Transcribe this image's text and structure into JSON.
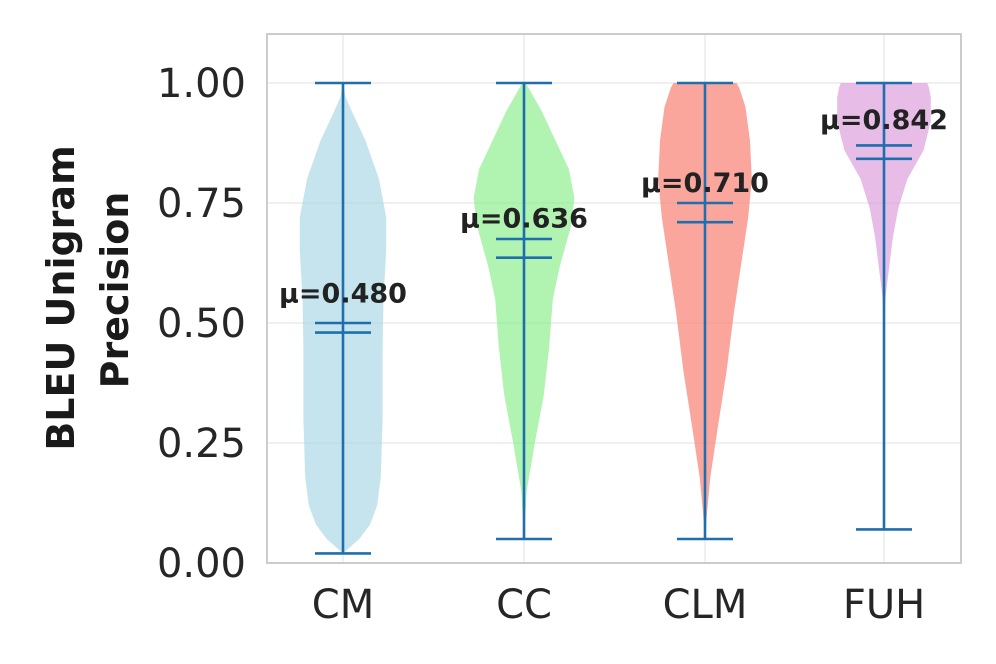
{
  "chart_data": {
    "type": "violin",
    "title": "",
    "xlabel": "",
    "ylabel": "BLEU Unigram Precision",
    "ylabel_lines": [
      "BLEU Unigram",
      "Precision"
    ],
    "ylim": [
      0,
      1.1
    ],
    "yticks": [
      0.0,
      0.25,
      0.5,
      0.75,
      1.0
    ],
    "ytick_labels": [
      "0.00",
      "0.25",
      "0.50",
      "0.75",
      "1.00"
    ],
    "grid": true,
    "line_color": "#1f6fae",
    "categories": [
      "CM",
      "CC",
      "CLM",
      "FUH"
    ],
    "series": [
      {
        "category": "CM",
        "color": "#add8e6",
        "min": 0.02,
        "max": 1.0,
        "mean": 0.48,
        "median": 0.5,
        "mean_label": "μ=0.480",
        "density": [
          [
            0.02,
            0.0
          ],
          [
            0.05,
            0.18
          ],
          [
            0.08,
            0.3
          ],
          [
            0.12,
            0.38
          ],
          [
            0.18,
            0.42
          ],
          [
            0.3,
            0.44
          ],
          [
            0.45,
            0.44
          ],
          [
            0.55,
            0.45
          ],
          [
            0.65,
            0.48
          ],
          [
            0.72,
            0.48
          ],
          [
            0.8,
            0.4
          ],
          [
            0.88,
            0.25
          ],
          [
            0.94,
            0.1
          ],
          [
            0.97,
            0.03
          ],
          [
            1.0,
            0.0
          ]
        ]
      },
      {
        "category": "CC",
        "color": "#90ee90",
        "min": 0.05,
        "max": 1.0,
        "mean": 0.636,
        "median": 0.675,
        "mean_label": "μ=0.636",
        "density": [
          [
            0.05,
            0.0
          ],
          [
            0.15,
            0.03
          ],
          [
            0.25,
            0.12
          ],
          [
            0.35,
            0.22
          ],
          [
            0.45,
            0.28
          ],
          [
            0.55,
            0.32
          ],
          [
            0.62,
            0.4
          ],
          [
            0.7,
            0.52
          ],
          [
            0.76,
            0.56
          ],
          [
            0.82,
            0.5
          ],
          [
            0.88,
            0.35
          ],
          [
            0.94,
            0.2
          ],
          [
            0.98,
            0.08
          ],
          [
            1.0,
            0.02
          ]
        ]
      },
      {
        "category": "CLM",
        "color": "#fa8072",
        "min": 0.05,
        "max": 1.0,
        "mean": 0.71,
        "median": 0.75,
        "mean_label": "μ=0.710",
        "density": [
          [
            0.05,
            0.0
          ],
          [
            0.1,
            0.02
          ],
          [
            0.18,
            0.06
          ],
          [
            0.28,
            0.14
          ],
          [
            0.4,
            0.24
          ],
          [
            0.52,
            0.32
          ],
          [
            0.62,
            0.4
          ],
          [
            0.72,
            0.48
          ],
          [
            0.8,
            0.52
          ],
          [
            0.88,
            0.5
          ],
          [
            0.95,
            0.45
          ],
          [
            0.99,
            0.38
          ],
          [
            1.0,
            0.35
          ]
        ]
      },
      {
        "category": "FUH",
        "color": "#dda0dd",
        "min": 0.07,
        "max": 1.0,
        "mean": 0.842,
        "median": 0.87,
        "mean_label": "μ=0.842",
        "density": [
          [
            0.5,
            0.0
          ],
          [
            0.56,
            0.02
          ],
          [
            0.62,
            0.06
          ],
          [
            0.68,
            0.1
          ],
          [
            0.74,
            0.16
          ],
          [
            0.8,
            0.26
          ],
          [
            0.86,
            0.44
          ],
          [
            0.92,
            0.52
          ],
          [
            0.97,
            0.52
          ],
          [
            0.99,
            0.5
          ],
          [
            1.0,
            0.48
          ]
        ]
      }
    ]
  }
}
